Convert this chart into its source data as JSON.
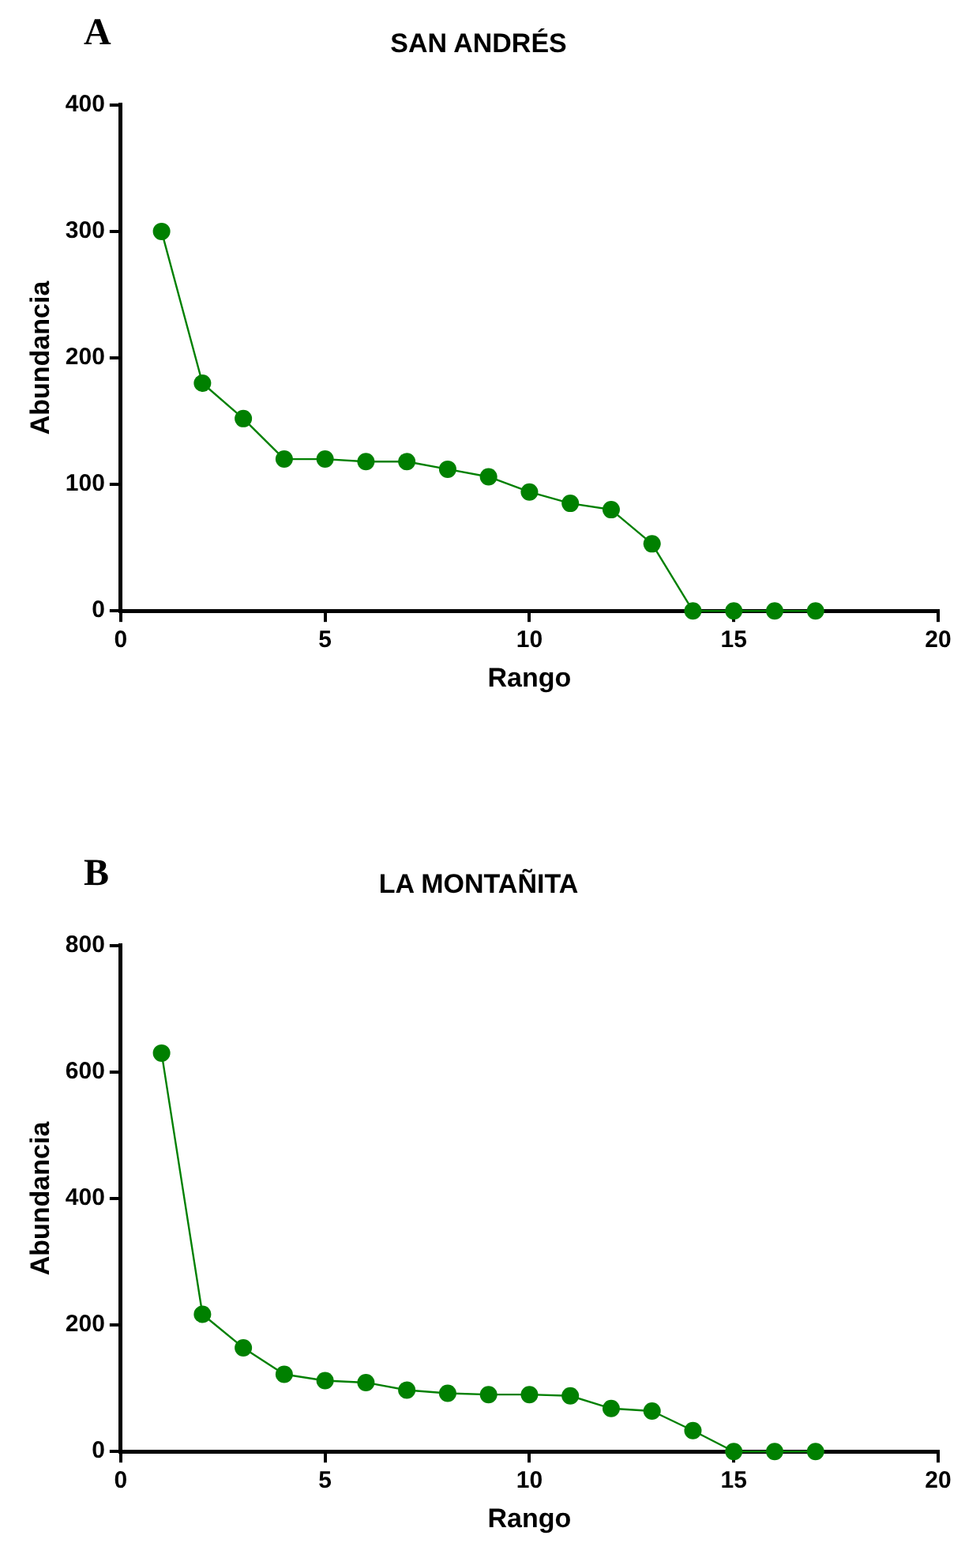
{
  "chart_data": [
    {
      "type": "line",
      "title": "SAN ANDRÉS",
      "xlabel": "Rango",
      "ylabel": "Abundancia",
      "annotations": [
        "A"
      ],
      "x": [
        1,
        2,
        3,
        4,
        5,
        6,
        7,
        8,
        9,
        10,
        11,
        12,
        13,
        14,
        15,
        16,
        17
      ],
      "series": [
        {
          "color": "#008000",
          "values": [
            300,
            180,
            152,
            120,
            120,
            118,
            118,
            112,
            106,
            94,
            85,
            80,
            53,
            0,
            0,
            0,
            0
          ]
        }
      ],
      "xlim": [
        0,
        20
      ],
      "xticks": [
        0,
        5,
        10,
        15,
        20
      ],
      "ylim": [
        0,
        400
      ],
      "yticks": [
        0,
        100,
        200,
        300,
        400
      ],
      "grid": false,
      "legend": false,
      "marker": "circle",
      "line_style": "solid"
    },
    {
      "type": "line",
      "title": "LA MONTAÑITA",
      "xlabel": "Rango",
      "ylabel": "Abundancia",
      "annotations": [
        "B"
      ],
      "x": [
        1,
        2,
        3,
        4,
        5,
        6,
        7,
        8,
        9,
        10,
        11,
        12,
        13,
        14,
        15,
        16,
        17
      ],
      "series": [
        {
          "color": "#008000",
          "values": [
            630,
            217,
            164,
            122,
            112,
            109,
            97,
            92,
            90,
            90,
            88,
            68,
            64,
            33,
            0,
            0,
            0
          ]
        }
      ],
      "xlim": [
        0,
        20
      ],
      "xticks": [
        0,
        5,
        10,
        15,
        20
      ],
      "ylim": [
        0,
        800
      ],
      "yticks": [
        0,
        200,
        400,
        600,
        800
      ],
      "grid": false,
      "legend": false,
      "marker": "circle",
      "line_style": "solid"
    }
  ]
}
